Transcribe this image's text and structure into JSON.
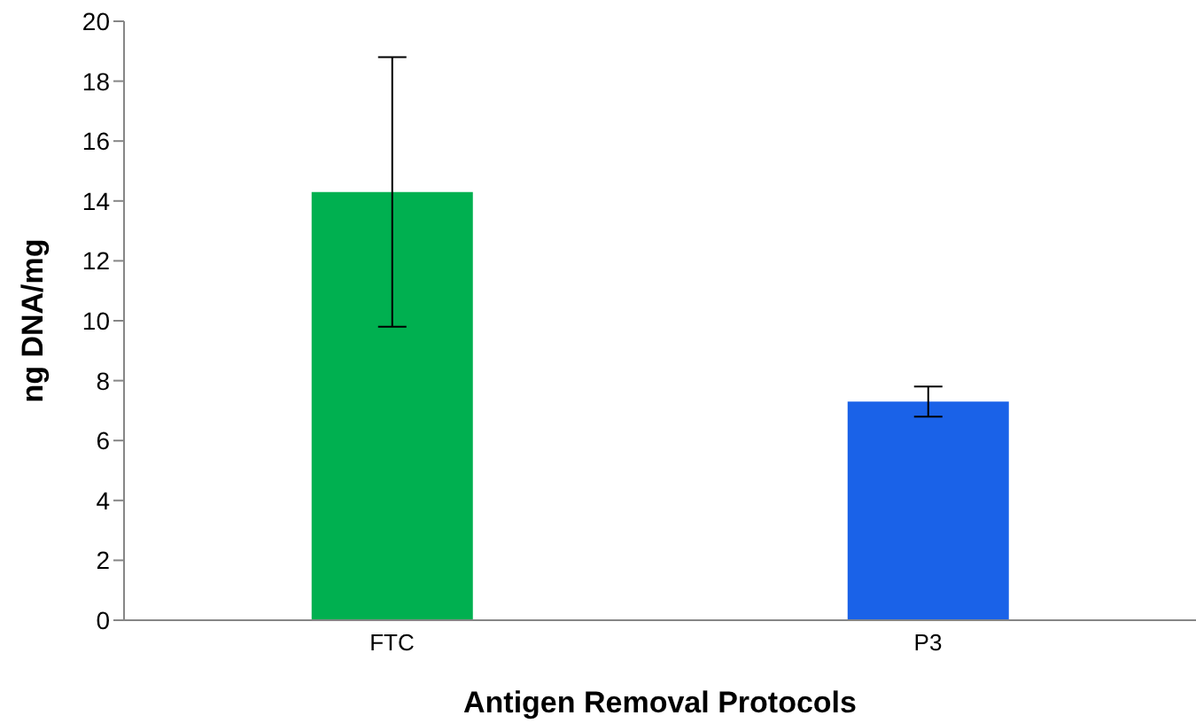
{
  "chart_data": {
    "type": "bar",
    "xlabel": "Antigen Removal Protocols",
    "ylabel": "ng DNA/mg",
    "categories": [
      "FTC",
      "P3"
    ],
    "values": [
      14.3,
      7.3
    ],
    "colors": [
      "#00b050",
      "#1a62e8"
    ],
    "errors": [
      4.5,
      0.5
    ],
    "ylim": [
      0,
      20
    ],
    "yticks": [
      0,
      2,
      4,
      6,
      8,
      10,
      12,
      14,
      16,
      18,
      20
    ],
    "grid": false,
    "legend": false
  }
}
